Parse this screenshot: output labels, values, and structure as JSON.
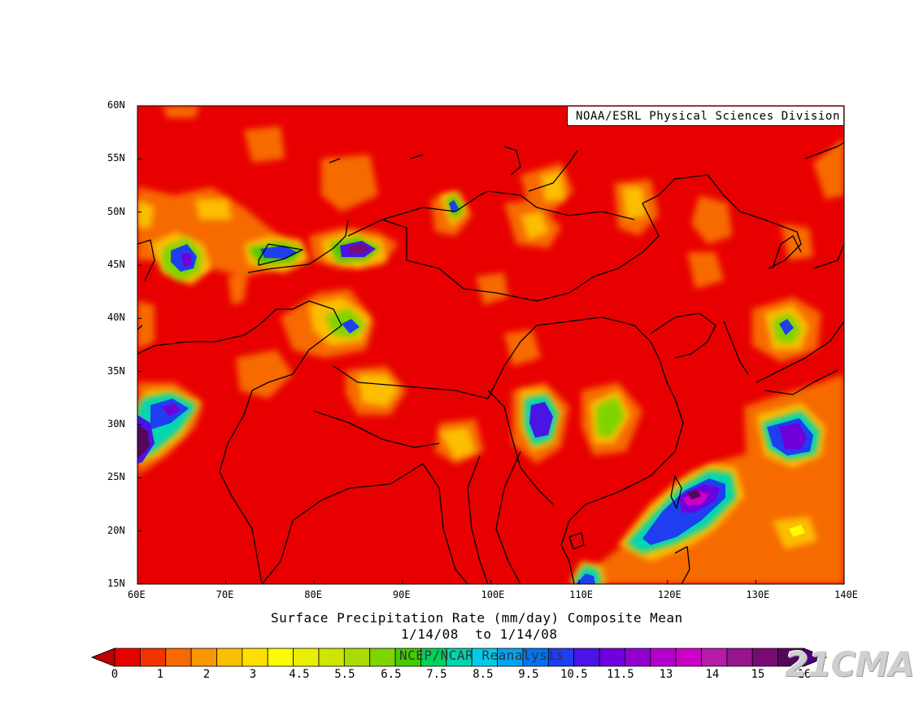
{
  "map": {
    "type": "filled-contour-map",
    "variable": "Surface Precipitation Rate (mm/day) Composite Mean",
    "lon_range": [
      60,
      140
    ],
    "lat_range": [
      15,
      60
    ],
    "x_ticks": [
      "60E",
      "70E",
      "80E",
      "90E",
      "100E",
      "110E",
      "120E",
      "130E",
      "140E"
    ],
    "y_ticks": [
      "15N",
      "20N",
      "25N",
      "30N",
      "35N",
      "40N",
      "45N",
      "50N",
      "55N",
      "60N"
    ],
    "credit": "NOAA/ESRL Physical Sciences Division",
    "title_line1": "Surface Precipitation Rate (mm/day) Composite Mean",
    "title_line2": "1/14/08  to 1/14/08",
    "reanalysis": "NCEP/NCAR Reanalysis",
    "watermark": "21CMA",
    "colorbar": {
      "labels": [
        "0",
        "1",
        "2",
        "3",
        "4.5",
        "5.5",
        "6.5",
        "7.5",
        "8.5",
        "9.5",
        "10.5",
        "11.5",
        "13",
        "14",
        "15",
        "16"
      ],
      "colors": [
        "#e80000",
        "#f23400",
        "#f66a00",
        "#fa9600",
        "#fcbe00",
        "#fde000",
        "#fcfc00",
        "#e8f000",
        "#cce600",
        "#a8dc00",
        "#7ed400",
        "#44cc00",
        "#00d25a",
        "#00d6b0",
        "#00cce8",
        "#00a4f2",
        "#0074f0",
        "#1e3ef0",
        "#4a14e6",
        "#7000dc",
        "#9200d0",
        "#b400cc",
        "#cc00c8",
        "#b41ca8",
        "#96148c",
        "#780c74",
        "#54085a"
      ],
      "low_arrow_color": "#be0000",
      "high_arrow_color": "#4c0078"
    },
    "precip_blobs": [
      {
        "lon": 64,
        "lat": 46,
        "peak": 13
      },
      {
        "lon": 76,
        "lat": 46.8,
        "peak": 11.5
      },
      {
        "lon": 84,
        "lat": 47,
        "peak": 13
      },
      {
        "lon": 84.5,
        "lat": 39.2,
        "peak": 11.5
      },
      {
        "lon": 88,
        "lat": 33,
        "peak": 7.5
      },
      {
        "lon": 63.5,
        "lat": 31.5,
        "peak": 15
      },
      {
        "lon": 60.5,
        "lat": 28.5,
        "peak": 16
      },
      {
        "lon": 95.5,
        "lat": 50.6,
        "peak": 10.5
      },
      {
        "lon": 105,
        "lat": 30.5,
        "peak": 13
      },
      {
        "lon": 113.5,
        "lat": 30.2,
        "peak": 8.5
      },
      {
        "lon": 133.5,
        "lat": 29.2,
        "peak": 13
      },
      {
        "lon": 133,
        "lat": 39,
        "peak": 11.5
      },
      {
        "lon": 105,
        "lat": 48.5,
        "peak": 6.5
      },
      {
        "lon": 107,
        "lat": 52.5,
        "peak": 5.5
      },
      {
        "lon": 116,
        "lat": 50.5,
        "peak": 5.5
      },
      {
        "lon": 123.5,
        "lat": 23.5,
        "peak": 15
      },
      {
        "lon": 119.5,
        "lat": 20.5,
        "peak": 11.5
      },
      {
        "lon": 111,
        "lat": 16,
        "peak": 8.5
      },
      {
        "lon": 134,
        "lat": 20,
        "peak": 5.5
      }
    ]
  }
}
